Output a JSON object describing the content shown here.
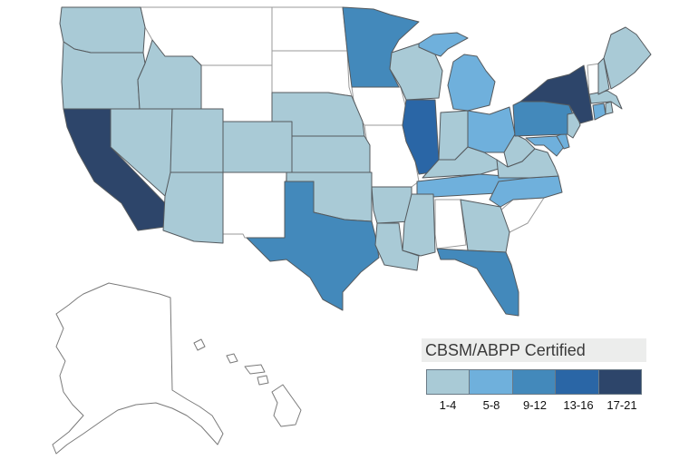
{
  "legend": {
    "title": "CBSM/ABPP Certified",
    "bins": [
      {
        "label": "1-4",
        "color": "#a9cad6"
      },
      {
        "label": "5-8",
        "color": "#6fb0dc"
      },
      {
        "label": "9-12",
        "color": "#4389bb"
      },
      {
        "label": "13-16",
        "color": "#2a66a6"
      },
      {
        "label": "17-21",
        "color": "#2d456a"
      }
    ]
  },
  "states": {
    "WA": "1-4",
    "OR": "1-4",
    "CA": "17-21",
    "NV": "1-4",
    "ID": "1-4",
    "UT": "1-4",
    "AZ": "1-4",
    "CO": "1-4",
    "NE": "1-4",
    "KS": "1-4",
    "MN": "9-12",
    "WI": "1-4",
    "MI": "5-8",
    "IL": "13-16",
    "IN": "1-4",
    "OH": "5-8",
    "KY": "1-4",
    "TN": "5-8",
    "NC": "5-8",
    "TX": "9-12",
    "OK": "1-4",
    "AR": "1-4",
    "LA": "1-4",
    "MS": "1-4",
    "GA": "1-4",
    "FL": "9-12",
    "PA": "9-12",
    "NY": "17-21",
    "ME": "1-4",
    "NJ": "1-4",
    "MA": "1-4",
    "VA": "1-4",
    "WV": "1-4",
    "MD": "5-8",
    "CT": "5-8",
    "DE": "5-8",
    "RI": "1-4",
    "NH": "1-4",
    "MT": null,
    "WY": null,
    "ND": null,
    "SD": null,
    "IA": null,
    "MO": null,
    "NM": null,
    "AL": null,
    "SC": null,
    "VT": null,
    "AK": null,
    "HI": null
  }
}
